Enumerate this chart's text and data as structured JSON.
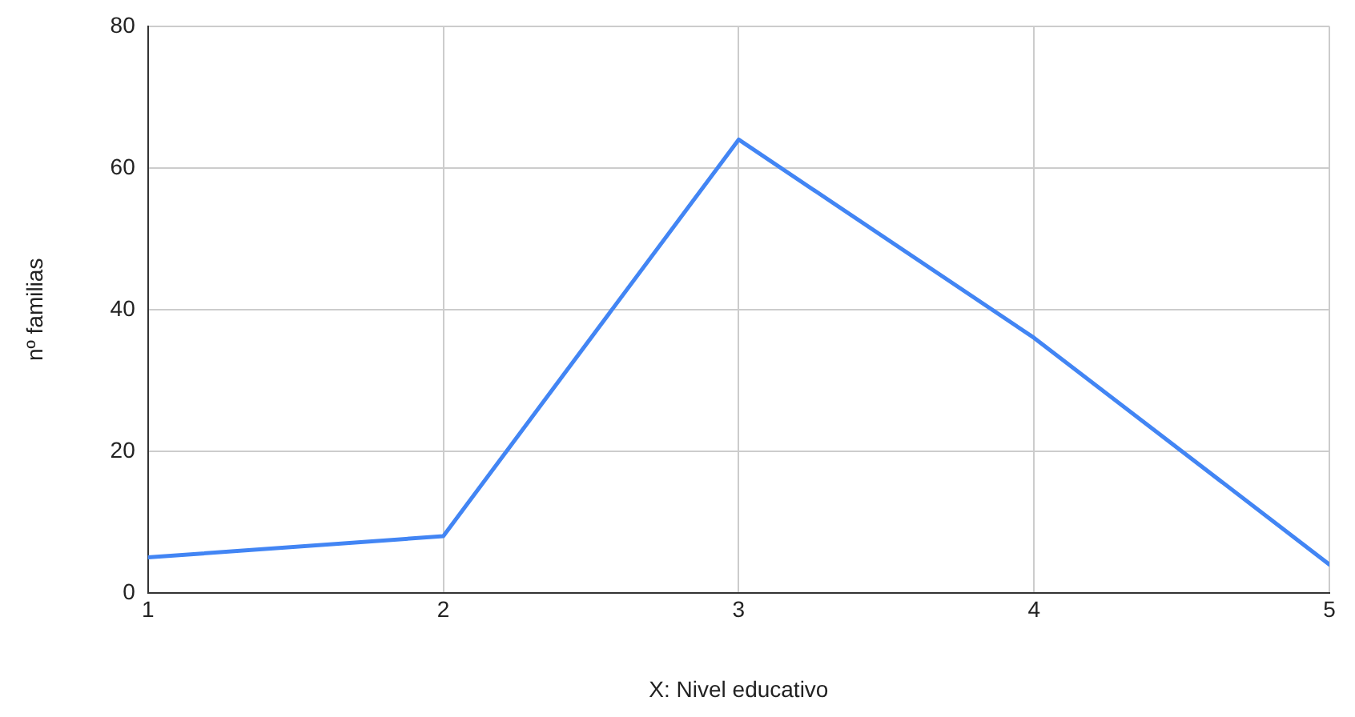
{
  "chart_data": {
    "type": "line",
    "xlabel": "X: Nivel educativo",
    "ylabel": "nº familias",
    "x": [
      1,
      2,
      3,
      4,
      5
    ],
    "series": [
      {
        "color": "#4285f4",
        "values": [
          5,
          8,
          64,
          36,
          4
        ]
      }
    ],
    "xlim": [
      1,
      5
    ],
    "xticks": [
      1,
      2,
      3,
      4,
      5
    ],
    "ylim": [
      0,
      80
    ],
    "yticks": [
      0,
      20,
      40,
      60,
      80
    ],
    "grid": true,
    "legend": false,
    "marker": "none",
    "line_style": "solid"
  }
}
